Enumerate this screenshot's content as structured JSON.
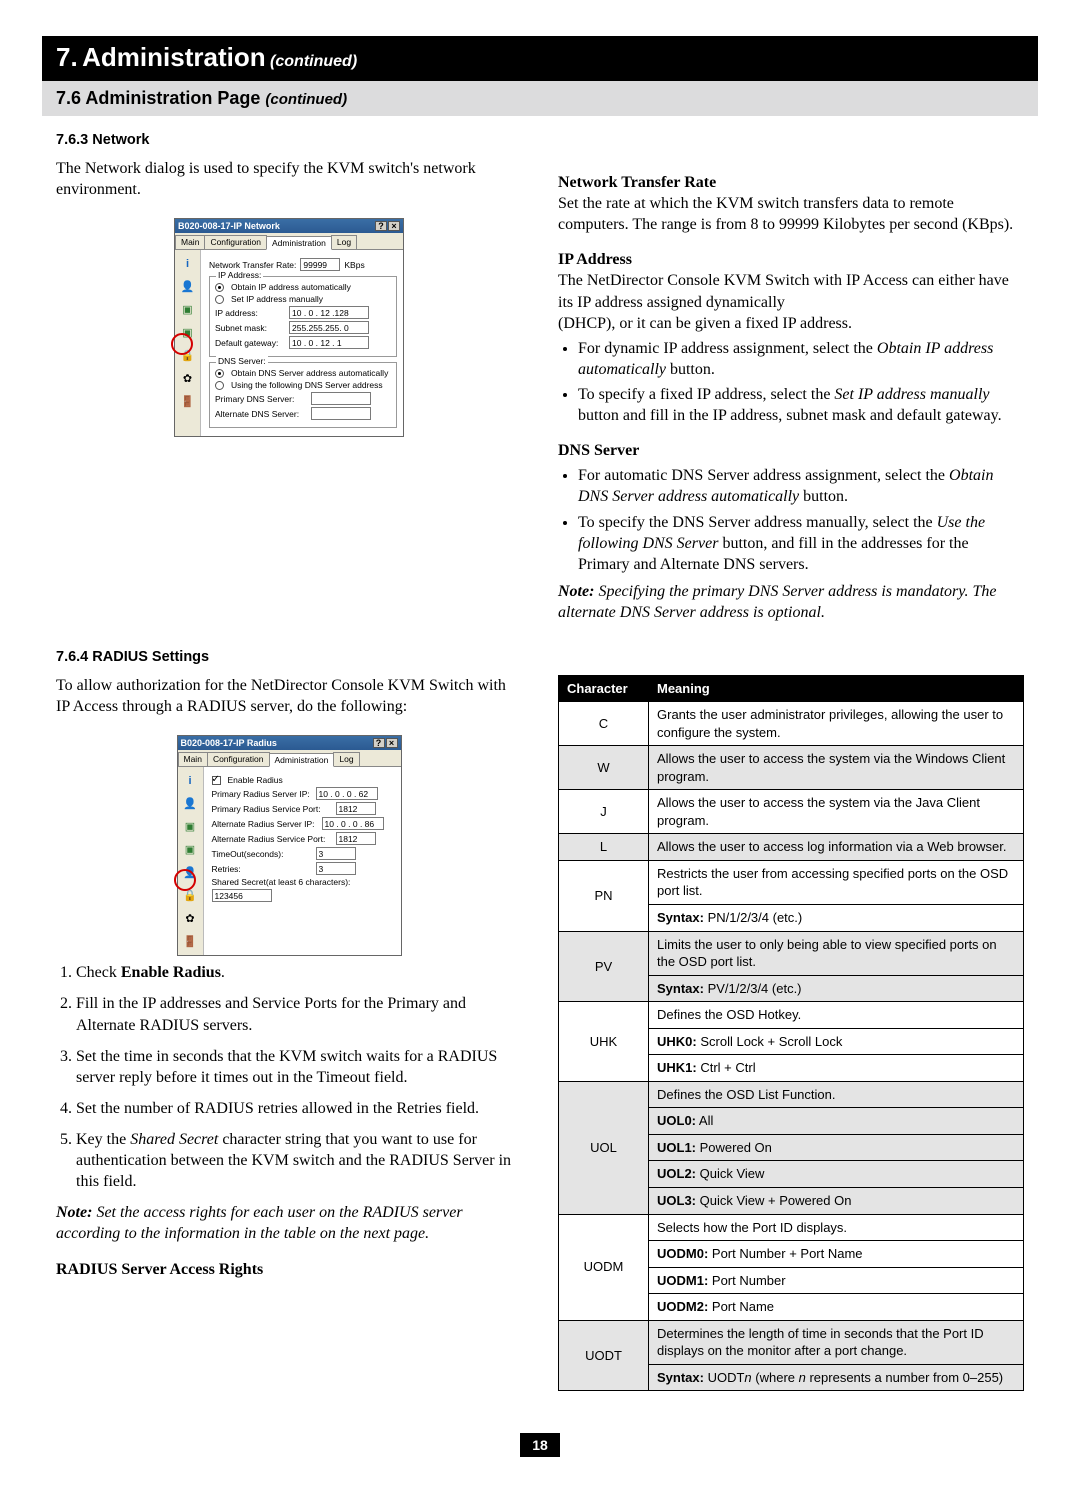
{
  "chapter": {
    "number": "7.",
    "title": "Administration",
    "cont": "(continued)"
  },
  "section": {
    "number": "7.6",
    "title": "Administration Page",
    "cont": "(continued)"
  },
  "sub1": {
    "num": "7.6.3",
    "title": "Network"
  },
  "sub2": {
    "num": "7.6.4",
    "title": "RADIUS Settings"
  },
  "left1": {
    "intro": "The Network dialog is used to specify the KVM switch's network environment."
  },
  "dlg1": {
    "title": "B020-008-17-IP Network",
    "tabs": [
      "Main",
      "Configuration",
      "Administration",
      "Log"
    ],
    "ntr_label": "Network Transfer Rate:",
    "ntr_value": "99999",
    "ntr_unit": "KBps",
    "ip_group": "IP Address:",
    "ip_auto": "Obtain IP address automatically",
    "ip_manual": "Set IP address manually",
    "ip_addr_label": "IP address:",
    "ip_addr_value": "10 . 0 . 12 .128",
    "subnet_label": "Subnet mask:",
    "subnet_value": "255.255.255. 0",
    "gw_label": "Default gateway:",
    "gw_value": "10 . 0 . 12 . 1",
    "dns_group": "DNS Server:",
    "dns_auto": "Obtain DNS Server address automatically",
    "dns_manual": "Using the following DNS Server address",
    "dns_primary_label": "Primary DNS Server:",
    "dns_alt_label": "Alternate DNS Server:"
  },
  "right1": {
    "ntr_head": "Network Transfer Rate",
    "ntr_body": "Set the rate at which the KVM switch transfers data to remote computers. The range is from 8 to 99999 Kilobytes per second (KBps).",
    "ip_head": "IP Address",
    "ip_body1": "The NetDirector Console KVM Switch with IP Access can either have its IP address assigned dynamically",
    "ip_body2": "(DHCP), or it can be given a fixed IP address.",
    "ip_bullet1a": "For dynamic IP address assignment, select the ",
    "ip_bullet1b": "Obtain IP address automatically",
    "ip_bullet1c": " button.",
    "ip_bullet2a": "To specify a fixed IP address, select the ",
    "ip_bullet2b": "Set IP address manually",
    "ip_bullet2c": " button and fill in the IP address, subnet mask and default gateway.",
    "dns_head": "DNS Server",
    "dns_bullet1a": "For automatic DNS Server address assignment, select the ",
    "dns_bullet1b": "Obtain DNS Server address automatically",
    "dns_bullet1c": " button.",
    "dns_bullet2a": "To specify the DNS Server address manually, select the ",
    "dns_bullet2b": "Use the following DNS Server",
    "dns_bullet2c": " button, and fill in the addresses for the Primary and Alternate DNS servers.",
    "dns_note_label": "Note:",
    "dns_note": " Specifying the primary DNS Server address is mandatory. The alternate DNS Server address is optional."
  },
  "left2": {
    "intro": "To allow authorization for the NetDirector Console KVM Switch with IP Access through a RADIUS server, do the following:"
  },
  "dlg2": {
    "title": "B020-008-17-IP Radius",
    "enable": "Enable Radius",
    "pr_ip_label": "Primary Radius Server IP:",
    "pr_ip_value": "10 . 0 . 0 . 62",
    "pr_port_label": "Primary Radius Service Port:",
    "pr_port_value": "1812",
    "alt_ip_label": "Alternate Radius Server IP:",
    "alt_ip_value": "10 . 0 . 0 . 86",
    "alt_port_label": "Alternate Radius Service Port:",
    "alt_port_value": "1812",
    "timeout_label": "TimeOut(seconds):",
    "timeout_value": "3",
    "retries_label": "Retries:",
    "retries_value": "3",
    "secret_label": "Shared Secret(at least 6 characters):",
    "secret_value": "123456"
  },
  "steps": {
    "s1a": "Check ",
    "s1b": "Enable Radius",
    "s1c": ".",
    "s2": "Fill in the IP addresses and Service Ports for the Primary and Alternate RADIUS servers.",
    "s3": "Set the time in seconds that the KVM switch waits for a RADIUS server reply before it times out in the Timeout field.",
    "s4": "Set the number of RADIUS retries allowed in the Retries field.",
    "s5a": "Key the ",
    "s5b": "Shared Secret",
    "s5c": " character string that you want to use for authentication between the KVM switch and the RADIUS Server in this field.",
    "note_label": "Note:",
    "note": " Set the access rights for each user on the RADIUS server according to the information in the table on the next page.",
    "rights_head": "RADIUS Server Access Rights"
  },
  "table": {
    "head_char": "Character",
    "head_meaning": "Meaning",
    "rows": [
      {
        "char": "C",
        "shade": false,
        "lines": [
          "Grants the user administrator privileges, allowing the user to configure the system."
        ]
      },
      {
        "char": "W",
        "shade": true,
        "lines": [
          "Allows the user to access the system via the Windows Client program."
        ]
      },
      {
        "char": "J",
        "shade": false,
        "lines": [
          "Allows the user to access the system via the Java Client program."
        ]
      },
      {
        "char": "L",
        "shade": true,
        "lines": [
          "Allows the user to access log information via a Web browser."
        ]
      },
      {
        "char": "PN",
        "shade": false,
        "lines": [
          "Restricts the user from accessing specified ports on the OSD port list.",
          "<b>Syntax:</b> PN/1/2/3/4 (etc.)"
        ]
      },
      {
        "char": "PV",
        "shade": true,
        "lines": [
          "Limits the user to only being able to view specified ports on the OSD port list.",
          "<b>Syntax:</b> PV/1/2/3/4 (etc.)"
        ]
      },
      {
        "char": "UHK",
        "shade": false,
        "lines": [
          "Defines the OSD Hotkey.",
          "<b>UHK0:</b> Scroll Lock + Scroll Lock",
          "<b>UHK1:</b> Ctrl + Ctrl"
        ]
      },
      {
        "char": "UOL",
        "shade": true,
        "lines": [
          "Defines the OSD List Function.",
          "<b>UOL0:</b> All",
          "<b>UOL1:</b> Powered On",
          "<b>UOL2:</b> Quick View",
          "<b>UOL3:</b> Quick View + Powered On"
        ]
      },
      {
        "char": "UODM",
        "shade": false,
        "lines": [
          "Selects how the Port ID displays.",
          "<b>UODM0:</b> Port Number + Port Name",
          "<b>UODM1:</b> Port Number",
          "<b>UODM2:</b> Port Name"
        ]
      },
      {
        "char": "UODT",
        "shade": true,
        "lines": [
          "Determines the length of time in seconds that the Port ID displays on the monitor after a port change.",
          "<b>Syntax:</b> UODT<i>n</i> (where <i>n</i> represents a number from 0–255)"
        ]
      }
    ]
  },
  "pagenum": "18"
}
